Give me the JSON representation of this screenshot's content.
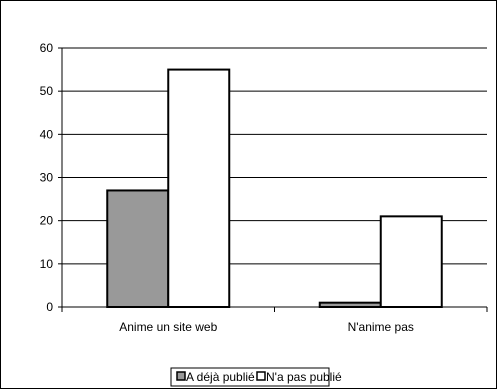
{
  "chart_data": {
    "type": "bar",
    "categories": [
      "Anime un site web",
      "N'anime pas"
    ],
    "series": [
      {
        "name": "A déjà publié",
        "values": [
          27,
          1
        ],
        "color": "#999999"
      },
      {
        "name": "N'a pas publié",
        "values": [
          55,
          21
        ],
        "color": "#ffffff"
      }
    ],
    "ylim": [
      0,
      60
    ],
    "yticks": [
      "0",
      "10",
      "20",
      "30",
      "40",
      "50",
      "60"
    ],
    "grid": true,
    "legend_position": "bottom"
  }
}
